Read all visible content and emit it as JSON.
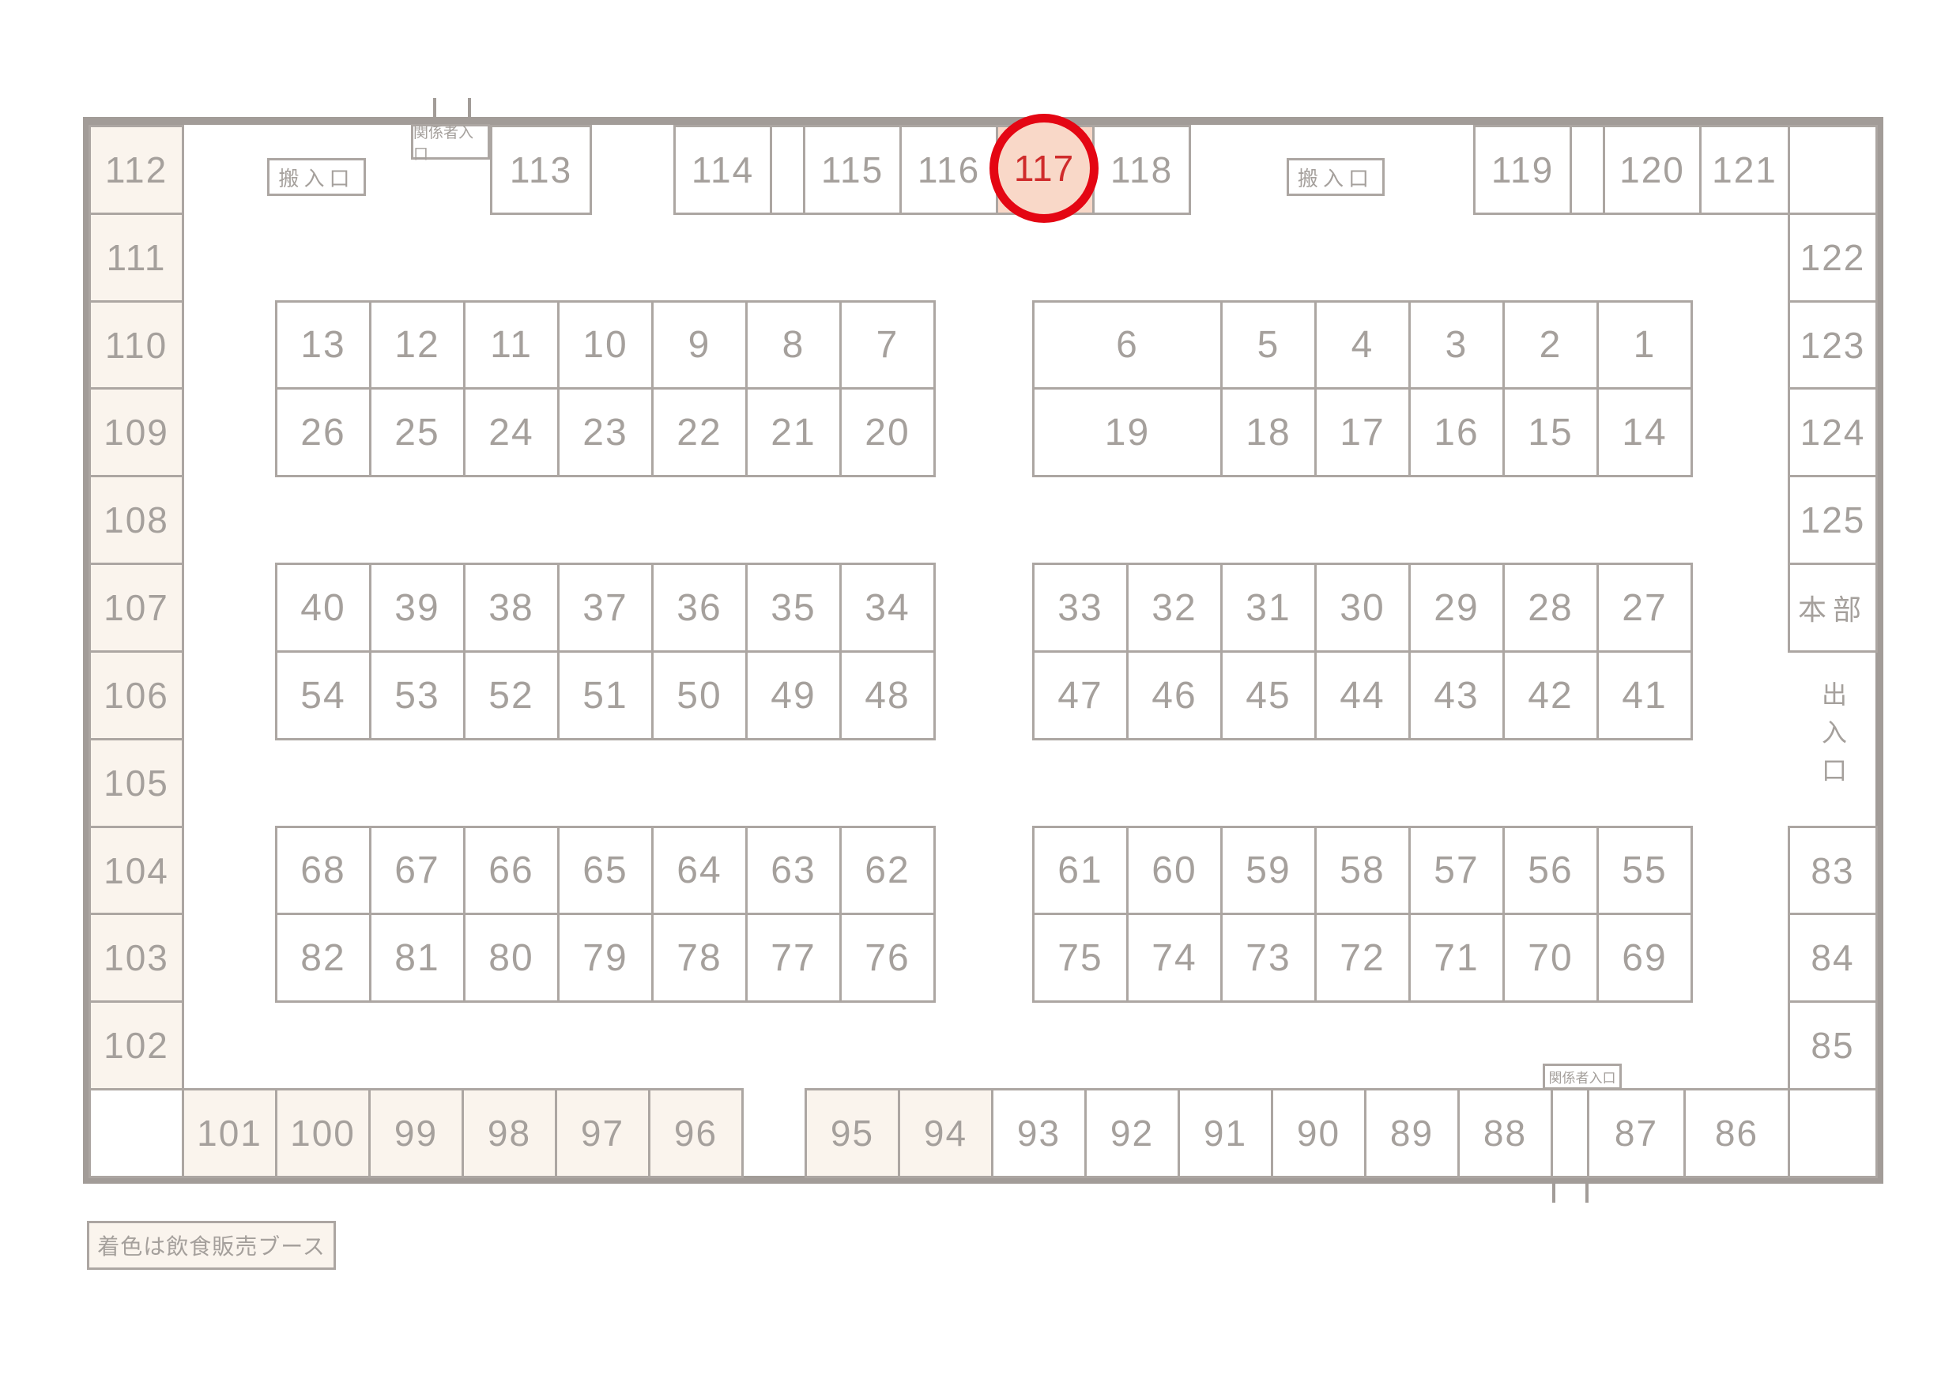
{
  "legend": {
    "text": "着色は飲食販売ブース"
  },
  "highlight": {
    "booth": "117"
  },
  "labels": {
    "carry_in_left": "搬入口",
    "carry_in_right": "搬入口",
    "staff_entrance_top": "関係者入口",
    "staff_entrance_bottom": "関係者入口",
    "exit": "出入口",
    "hq": "本部"
  },
  "left_column": [
    "112",
    "111",
    "110",
    "109",
    "108",
    "107",
    "106",
    "105",
    "104",
    "103",
    "102"
  ],
  "right_column_top": [
    "122",
    "123",
    "124",
    "125"
  ],
  "right_column_bottom": [
    "83",
    "84",
    "85"
  ],
  "top_row": [
    "113",
    "114",
    "115",
    "116",
    "117",
    "118",
    "119",
    "120",
    "121"
  ],
  "bottom_row_food": [
    "101",
    "100",
    "99",
    "98",
    "97",
    "96",
    "95",
    "94"
  ],
  "bottom_row_plain": [
    "93",
    "92",
    "91",
    "90",
    "89",
    "88",
    "87",
    "86"
  ],
  "blocks": {
    "top_left": [
      [
        "13",
        "12",
        "11",
        "10",
        "9",
        "8",
        "7"
      ],
      [
        "26",
        "25",
        "24",
        "23",
        "22",
        "21",
        "20"
      ]
    ],
    "top_right": [
      [
        "6",
        "5",
        "4",
        "3",
        "2",
        "1"
      ],
      [
        "19",
        "18",
        "17",
        "16",
        "15",
        "14"
      ]
    ],
    "mid_left": [
      [
        "40",
        "39",
        "38",
        "37",
        "36",
        "35",
        "34"
      ],
      [
        "54",
        "53",
        "52",
        "51",
        "50",
        "49",
        "48"
      ]
    ],
    "mid_right": [
      [
        "33",
        "32",
        "31",
        "30",
        "29",
        "28",
        "27"
      ],
      [
        "47",
        "46",
        "45",
        "44",
        "43",
        "42",
        "41"
      ]
    ],
    "bottom_left": [
      [
        "68",
        "67",
        "66",
        "65",
        "64",
        "63",
        "62"
      ],
      [
        "82",
        "81",
        "80",
        "79",
        "78",
        "77",
        "76"
      ]
    ],
    "bottom_right": [
      [
        "61",
        "60",
        "59",
        "58",
        "57",
        "56",
        "55"
      ],
      [
        "75",
        "74",
        "73",
        "72",
        "71",
        "70",
        "69"
      ]
    ]
  },
  "colors": {
    "wall": "#a29c98",
    "line": "#aca6a2",
    "text": "#a5a09c",
    "food_bg": "#faf4ed",
    "highlight_bg": "#f9d8c8",
    "highlight_ring": "#e40613",
    "highlight_text": "#cf2b2b"
  }
}
